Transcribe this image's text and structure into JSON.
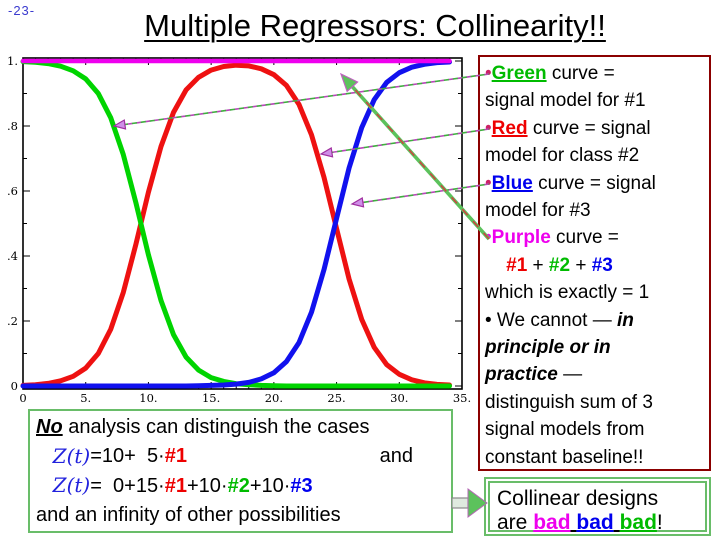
{
  "page": {
    "number_label": "-23-",
    "title": "Multiple Regressors: Collinearity!!"
  },
  "colors": {
    "green": "#00bb00",
    "red": "#ee0000",
    "blue": "#0000ee",
    "purple": "#ee00ee",
    "panel_border": "#8b0000",
    "box_border": "#69bd69",
    "page_number": "#3b3bcf"
  },
  "chart_data": {
    "type": "line",
    "title": "",
    "xlabel": "",
    "ylabel": "",
    "xlim": [
      0,
      35
    ],
    "ylim": [
      0,
      1
    ],
    "grid": false,
    "legend_position": "none",
    "x_ticks": [
      0,
      5,
      10,
      15,
      20,
      25,
      30,
      35
    ],
    "x_tick_labels": [
      "0",
      "5.",
      "10.",
      "15.",
      "20.",
      "25.",
      "30.",
      "35."
    ],
    "x_minor_step": 1,
    "y_ticks": [
      0,
      0.2,
      0.4,
      0.6,
      0.8,
      1
    ],
    "y_tick_labels": [
      "0",
      ".2",
      ".4",
      ".6",
      ".8",
      "1."
    ],
    "y_minor_step": 0.1,
    "x": [
      0,
      1,
      2,
      3,
      4,
      5,
      6,
      7,
      8,
      9,
      10,
      11,
      12,
      13,
      14,
      15,
      16,
      17,
      18,
      19,
      20,
      21,
      22,
      23,
      24,
      25,
      26,
      27,
      28,
      29,
      30,
      31,
      32,
      33,
      34
    ],
    "series": [
      {
        "name": "green-curve signal model for #1",
        "color": "#00d400",
        "y": [
          0.998,
          0.996,
          0.992,
          0.984,
          0.97,
          0.945,
          0.9,
          0.825,
          0.712,
          0.564,
          0.404,
          0.263,
          0.158,
          0.089,
          0.049,
          0.026,
          0.014,
          0.007,
          0.004,
          0.002,
          0.001,
          0,
          0,
          0,
          0,
          0,
          0,
          0,
          0,
          0,
          0,
          0,
          0,
          0,
          0
        ]
      },
      {
        "name": "red-curve signal model for class #2",
        "color": "#ee1111",
        "y": [
          0.002,
          0.004,
          0.008,
          0.016,
          0.03,
          0.055,
          0.1,
          0.175,
          0.288,
          0.436,
          0.596,
          0.737,
          0.842,
          0.911,
          0.95,
          0.972,
          0.983,
          0.987,
          0.985,
          0.976,
          0.958,
          0.925,
          0.867,
          0.773,
          0.642,
          0.484,
          0.329,
          0.205,
          0.119,
          0.066,
          0.036,
          0.019,
          0.01,
          0.005,
          0.003
        ]
      },
      {
        "name": "blue-curve signal model for #3",
        "color": "#1111ee",
        "y": [
          0,
          0,
          0,
          0,
          0,
          0,
          0,
          0,
          0,
          0,
          0,
          0,
          0,
          0,
          0.001,
          0.002,
          0.003,
          0.006,
          0.011,
          0.022,
          0.041,
          0.075,
          0.133,
          0.227,
          0.358,
          0.516,
          0.671,
          0.795,
          0.881,
          0.934,
          0.964,
          0.981,
          0.99,
          0.995,
          0.997
        ]
      },
      {
        "name": "purple-curve sum #1+#2+#3 = 1",
        "color": "#ee00ee",
        "y_const": 1
      }
    ]
  },
  "arrows": [
    {
      "from": [
        489,
        74
      ],
      "to": [
        114,
        126
      ],
      "style": "thin",
      "points_to": "green-curve"
    },
    {
      "from": [
        489,
        129
      ],
      "to": [
        321,
        154
      ],
      "style": "thin",
      "points_to": "red-curve"
    },
    {
      "from": [
        489,
        184
      ],
      "to": [
        352,
        204
      ],
      "style": "thin",
      "points_to": "blue-curve"
    },
    {
      "from": [
        489,
        239
      ],
      "to": [
        341,
        74
      ],
      "style": "thick",
      "points_to": "purple-curve"
    }
  ],
  "block_arrow": {
    "shaft": [
      452,
      498,
      468,
      508
    ],
    "head": [
      [
        468,
        489
      ],
      [
        468,
        517
      ],
      [
        487,
        503
      ]
    ]
  },
  "right_panel": {
    "lines": [
      [
        {
          "t": "•",
          "c": "#cc2266"
        },
        {
          "t": "Green",
          "c": "#00bb00",
          "b": true,
          "u": true
        },
        {
          "t": " curve ="
        }
      ],
      [
        {
          "t": "signal model for #1"
        }
      ],
      [
        {
          "t": "•",
          "c": "#cc2266"
        },
        {
          "t": "Red",
          "c": "#ee0000",
          "b": true,
          "u": true
        },
        {
          "t": " curve = signal"
        }
      ],
      [
        {
          "t": "model for class #2"
        }
      ],
      [
        {
          "t": "•",
          "c": "#cc2266"
        },
        {
          "t": "Blue",
          "c": "#0000ee",
          "b": true,
          "u": true
        },
        {
          "t": " curve = signal"
        }
      ],
      [
        {
          "t": "model for #3"
        }
      ],
      [
        {
          "t": "•",
          "c": "#ee00ee"
        },
        {
          "t": "Purple",
          "c": "#ee00ee",
          "b": true
        },
        {
          "t": " curve ="
        }
      ],
      [
        {
          "t": "    "
        },
        {
          "t": "#1",
          "c": "#ee0000",
          "b": true
        },
        {
          "t": " + "
        },
        {
          "t": "#2",
          "c": "#00bb00",
          "b": true
        },
        {
          "t": " + "
        },
        {
          "t": "#3",
          "c": "#0000ee",
          "b": true
        }
      ],
      [
        {
          "t": "which is exactly = 1"
        }
      ],
      [
        {
          "t": "• We cannot — "
        },
        {
          "t": "in",
          "b": true,
          "i": true
        }
      ],
      [
        {
          "t": "principle or in",
          "b": true,
          "i": true
        }
      ],
      [
        {
          "t": "practice",
          "b": true,
          "i": true
        },
        {
          "t": " —"
        }
      ],
      [
        {
          "t": "distinguish sum of 3"
        }
      ],
      [
        {
          "t": "signal models from"
        }
      ],
      [
        {
          "t": "constant baseline!!"
        }
      ]
    ]
  },
  "bottom_box": {
    "lines": [
      [
        {
          "t": "No",
          "b": true,
          "i": true,
          "u": true
        },
        {
          "t": " analysis can distinguish the cases"
        }
      ],
      [
        {
          "t": "   "
        },
        {
          "t": "Z(t)",
          "c": "#2222dd",
          "i": true,
          "serif": true
        },
        {
          "t": "=10+  5·"
        },
        {
          "t": "#1",
          "c": "#ee0000",
          "b": true
        },
        {
          "t": "and",
          "push": true
        }
      ],
      [
        {
          "t": "   "
        },
        {
          "t": "Z(t)",
          "c": "#2222dd",
          "i": true,
          "serif": true
        },
        {
          "t": "=  0+15·"
        },
        {
          "t": "#1",
          "c": "#ee0000",
          "b": true
        },
        {
          "t": "+10·"
        },
        {
          "t": "#2",
          "c": "#00bb00",
          "b": true
        },
        {
          "t": "+10·"
        },
        {
          "t": "#3",
          "c": "#0000ee",
          "b": true
        }
      ],
      [
        {
          "t": "and an infinity of other possibilities"
        }
      ]
    ]
  },
  "collinear_box": {
    "lines": [
      [
        {
          "t": "Collinear designs"
        }
      ],
      [
        {
          "t": "are "
        },
        {
          "t": "bad",
          "c": "#ee00ee",
          "b": true,
          "u": true
        },
        {
          "t": " ",
          "u": true
        },
        {
          "t": "bad",
          "c": "#0000ee",
          "b": true,
          "u": true
        },
        {
          "t": " ",
          "u": true
        },
        {
          "t": "bad",
          "c": "#00bb00",
          "b": true,
          "u": true
        },
        {
          "t": "!"
        }
      ]
    ]
  }
}
